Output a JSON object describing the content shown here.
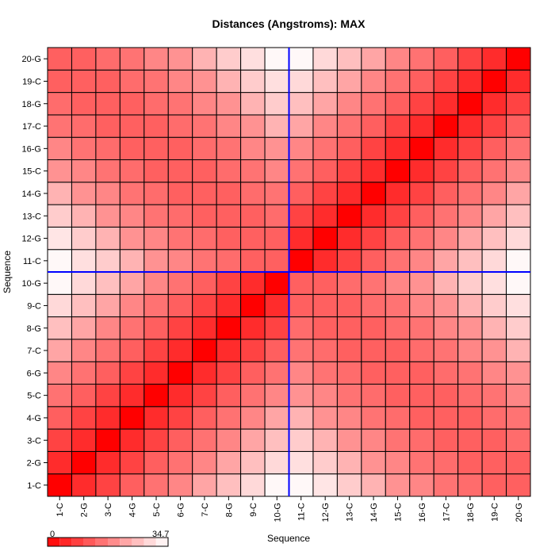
{
  "chart_data": {
    "type": "heatmap",
    "title": "Distances (Angstroms):  MAX",
    "xlabel": "Sequence",
    "ylabel": "Sequence",
    "labels": [
      "1-C",
      "2-G",
      "3-C",
      "4-G",
      "5-C",
      "6-G",
      "7-C",
      "8-G",
      "9-C",
      "10-G",
      "11-C",
      "12-G",
      "13-C",
      "14-G",
      "15-C",
      "16-G",
      "17-C",
      "18-G",
      "19-C",
      "20-G"
    ],
    "color_scale": {
      "min": 0,
      "max": 34.7,
      "min_label": "0",
      "max_label": "34.7",
      "low_color": "#ff0000",
      "high_color": "#ffffff"
    },
    "divider_after_index": 10,
    "divider_color": "#0000ff",
    "grid": true,
    "values": [
      [
        0.0,
        6.0,
        9.1,
        12.9,
        15.5,
        18.2,
        22.5,
        26.0,
        29.5,
        33.8,
        33.8,
        31.2,
        27.7,
        24.3,
        19.9,
        18.2,
        15.6,
        14.7,
        13.0,
        13.0
      ],
      [
        6.0,
        0.0,
        6.0,
        9.1,
        12.9,
        15.5,
        18.2,
        22.5,
        26.0,
        29.5,
        30.3,
        27.7,
        24.3,
        19.9,
        18.2,
        15.6,
        14.7,
        13.0,
        13.0,
        13.0
      ],
      [
        9.1,
        6.0,
        0.0,
        6.0,
        9.1,
        12.9,
        15.5,
        18.2,
        22.5,
        26.0,
        27.7,
        24.3,
        19.9,
        18.2,
        15.6,
        14.7,
        13.0,
        13.0,
        13.0,
        14.7
      ],
      [
        12.9,
        9.1,
        6.0,
        0.0,
        6.0,
        9.1,
        12.9,
        15.5,
        18.2,
        22.5,
        24.3,
        19.9,
        18.2,
        15.6,
        14.7,
        13.0,
        13.0,
        13.0,
        14.7,
        15.6
      ],
      [
        15.5,
        12.9,
        9.1,
        6.0,
        0.0,
        6.0,
        9.1,
        12.9,
        15.5,
        18.2,
        19.9,
        18.2,
        15.6,
        14.7,
        13.0,
        13.0,
        13.0,
        14.7,
        15.6,
        18.2
      ],
      [
        18.2,
        15.5,
        12.9,
        9.1,
        6.0,
        0.0,
        6.0,
        9.1,
        12.9,
        15.5,
        18.2,
        15.6,
        14.7,
        13.0,
        13.0,
        13.0,
        14.7,
        15.6,
        18.2,
        19.9
      ],
      [
        22.5,
        18.2,
        15.5,
        12.9,
        9.1,
        6.0,
        0.0,
        6.0,
        9.1,
        12.9,
        15.6,
        14.7,
        13.0,
        13.0,
        13.0,
        14.7,
        15.6,
        18.2,
        19.9,
        24.3
      ],
      [
        26.0,
        22.5,
        18.2,
        15.5,
        12.9,
        9.1,
        6.0,
        0.0,
        6.0,
        9.1,
        14.7,
        13.0,
        13.0,
        13.0,
        14.7,
        15.6,
        18.2,
        19.9,
        24.3,
        27.7
      ],
      [
        29.5,
        26.0,
        22.5,
        18.2,
        15.5,
        12.9,
        9.1,
        6.0,
        0.0,
        6.0,
        13.0,
        13.0,
        13.0,
        14.7,
        15.6,
        18.2,
        19.9,
        24.3,
        27.7,
        30.3
      ],
      [
        33.8,
        29.5,
        26.0,
        22.5,
        18.2,
        15.5,
        12.9,
        9.1,
        6.0,
        0.0,
        13.0,
        13.0,
        14.7,
        15.6,
        18.2,
        19.9,
        24.3,
        27.7,
        30.3,
        33.8
      ],
      [
        33.8,
        30.3,
        27.7,
        24.3,
        19.9,
        18.2,
        15.6,
        14.7,
        13.0,
        13.0,
        0.0,
        6.0,
        9.1,
        12.9,
        15.5,
        18.2,
        22.5,
        26.0,
        29.5,
        33.8
      ],
      [
        31.2,
        27.7,
        24.3,
        19.9,
        18.2,
        15.6,
        14.7,
        13.0,
        13.0,
        13.0,
        6.0,
        0.0,
        6.0,
        9.1,
        12.9,
        15.5,
        18.2,
        22.5,
        26.0,
        29.5
      ],
      [
        27.7,
        24.3,
        19.9,
        18.2,
        15.6,
        14.7,
        13.0,
        13.0,
        13.0,
        14.7,
        9.1,
        6.0,
        0.0,
        6.0,
        9.1,
        12.9,
        15.5,
        18.2,
        22.5,
        26.0
      ],
      [
        24.3,
        19.9,
        18.2,
        15.6,
        14.7,
        13.0,
        13.0,
        13.0,
        14.7,
        15.6,
        12.9,
        9.1,
        6.0,
        0.0,
        6.0,
        9.1,
        12.9,
        15.5,
        18.2,
        22.5
      ],
      [
        19.9,
        18.2,
        15.6,
        14.7,
        13.0,
        13.0,
        13.0,
        14.7,
        15.6,
        18.2,
        15.5,
        12.9,
        9.1,
        6.0,
        0.0,
        6.0,
        9.1,
        12.9,
        15.5,
        18.2
      ],
      [
        18.2,
        15.6,
        14.7,
        13.0,
        13.0,
        13.0,
        14.7,
        15.6,
        18.2,
        19.9,
        18.2,
        15.5,
        12.9,
        9.1,
        6.0,
        0.0,
        6.0,
        9.1,
        12.9,
        15.5
      ],
      [
        15.6,
        14.7,
        13.0,
        13.0,
        13.0,
        14.7,
        15.6,
        18.2,
        19.9,
        24.3,
        22.5,
        18.2,
        15.5,
        12.9,
        9.1,
        6.0,
        0.0,
        6.0,
        9.1,
        12.9
      ],
      [
        14.7,
        13.0,
        13.0,
        13.0,
        14.7,
        15.6,
        18.2,
        19.9,
        24.3,
        27.7,
        26.0,
        22.5,
        18.2,
        15.5,
        12.9,
        9.1,
        6.0,
        0.0,
        6.0,
        9.1
      ],
      [
        13.0,
        13.0,
        13.0,
        14.7,
        15.6,
        18.2,
        19.9,
        24.3,
        27.7,
        30.3,
        29.5,
        26.0,
        22.5,
        18.2,
        15.5,
        12.9,
        9.1,
        6.0,
        0.0,
        6.0
      ],
      [
        13.0,
        13.0,
        14.7,
        15.6,
        18.2,
        19.9,
        24.3,
        27.7,
        30.3,
        33.8,
        33.8,
        29.5,
        26.0,
        22.5,
        18.2,
        15.5,
        12.9,
        9.1,
        6.0,
        0.0
      ]
    ]
  }
}
